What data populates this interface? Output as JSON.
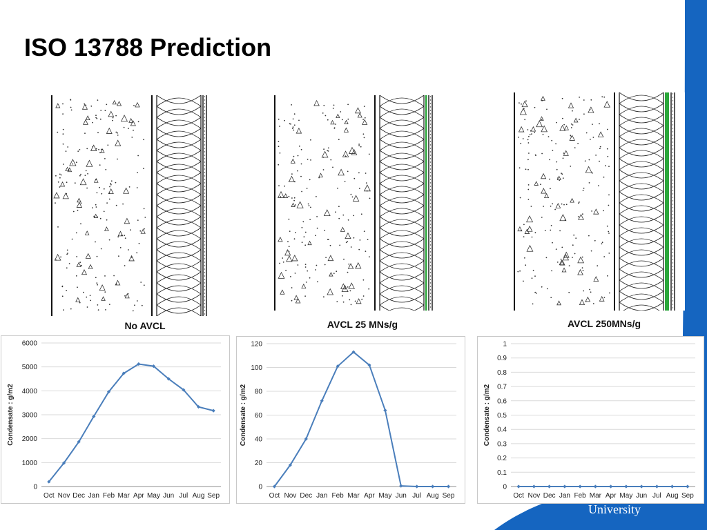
{
  "slide": {
    "title": "ISO 13788 Prediction",
    "brand_text": "University"
  },
  "colors": {
    "brand_blue": "#1565c0",
    "series_line": "#4a7ebb",
    "gridline": "#d9d9d9",
    "membrane_green": "#2aa63a"
  },
  "walls": [
    {
      "label": "No AVCL",
      "membrane": "none"
    },
    {
      "label": "AVCL 25 MNs/g",
      "membrane": "thin"
    },
    {
      "label": "AVCL 250MNs/g",
      "membrane": "thick"
    }
  ],
  "chart_data": [
    {
      "type": "line",
      "ylabel": "Condensate : g/m2",
      "categories": [
        "Oct",
        "Nov",
        "Dec",
        "Jan",
        "Feb",
        "Mar",
        "Apr",
        "May",
        "Jun",
        "Jul",
        "Aug",
        "Sep"
      ],
      "series": [
        {
          "values": [
            200,
            980,
            1870,
            2930,
            3960,
            4730,
            5120,
            5030,
            4500,
            4040,
            3330,
            3170
          ]
        }
      ],
      "ylim": [
        0,
        6000
      ],
      "yticks": [
        "0",
        "1000",
        "2000",
        "3000",
        "4000",
        "5000",
        "6000"
      ],
      "grid": true,
      "legend": "none"
    },
    {
      "type": "line",
      "ylabel": "Condensate : g/m2",
      "categories": [
        "Oct",
        "Nov",
        "Dec",
        "Jan",
        "Feb",
        "Mar",
        "Apr",
        "May",
        "Jun",
        "Jul",
        "Aug",
        "Sep"
      ],
      "series": [
        {
          "values": [
            0,
            18,
            40,
            72,
            101,
            113,
            102,
            64,
            0.5,
            0,
            0,
            0
          ]
        }
      ],
      "ylim": [
        0,
        120
      ],
      "yticks": [
        "0",
        "20",
        "40",
        "60",
        "80",
        "100",
        "120"
      ],
      "grid": true,
      "legend": "none"
    },
    {
      "type": "line",
      "ylabel": "Condensate : g/m2",
      "categories": [
        "Oct",
        "Nov",
        "Dec",
        "Jan",
        "Feb",
        "Mar",
        "Apr",
        "May",
        "Jun",
        "Jul",
        "Aug",
        "Sep"
      ],
      "series": [
        {
          "values": [
            0,
            0,
            0,
            0,
            0,
            0,
            0,
            0,
            0,
            0,
            0,
            0
          ]
        }
      ],
      "ylim": [
        0,
        1
      ],
      "yticks": [
        "0",
        "0.1",
        "0.2",
        "0.3",
        "0.4",
        "0.5",
        "0.6",
        "0.7",
        "0.8",
        "0.9",
        "1"
      ],
      "grid": true,
      "legend": "none"
    }
  ]
}
